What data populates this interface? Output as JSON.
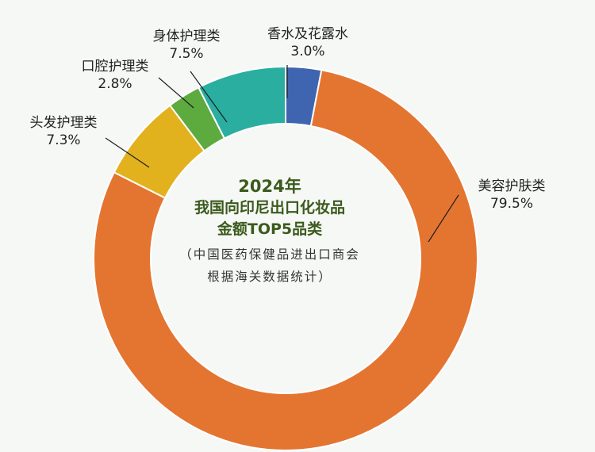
{
  "chart_data": {
    "type": "pie",
    "variant": "donut",
    "title_lines": [
      "2024年",
      "我国向印尼出口化妆品",
      "金额TOP5品类"
    ],
    "note_lines": [
      "（中国医药保健品进出口商会",
      "根据海关数据统计）"
    ],
    "slices": [
      {
        "label": "香水及花露水",
        "value": 3.0,
        "value_text": "3.0%",
        "color": "#3f64b0"
      },
      {
        "label": "美容护肤类",
        "value": 79.5,
        "value_text": "79.5%",
        "color": "#e47531"
      },
      {
        "label": "头发护理类",
        "value": 7.3,
        "value_text": "7.3%",
        "color": "#e2b21e"
      },
      {
        "label": "口腔护理类",
        "value": 2.8,
        "value_text": "2.8%",
        "color": "#5daa3f"
      },
      {
        "label": "身体护理类",
        "value": 7.5,
        "value_text": "7.5%",
        "color": "#2aaea0"
      }
    ],
    "legend": "none"
  }
}
